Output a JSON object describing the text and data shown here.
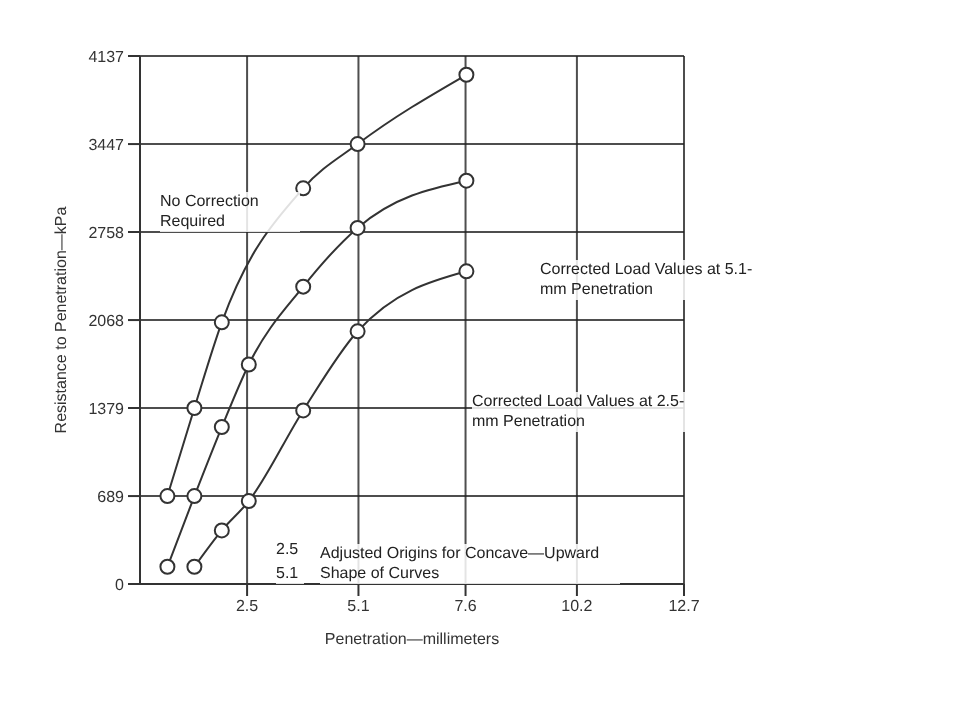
{
  "chart_data": {
    "type": "line",
    "xlabel": "Penetration—millimeters",
    "ylabel": "Resistance to Penetration—kPa",
    "series": [
      {
        "color": "#333333",
        "x": [
          0.64,
          1.27,
          1.91,
          3.81,
          5.08,
          7.62
        ],
        "values": [
          689,
          1379,
          2050,
          3100,
          3447,
          3990
        ]
      },
      {
        "color": "#333333",
        "x": [
          0.64,
          1.27,
          1.91,
          2.54,
          3.81,
          5.08,
          7.62
        ],
        "values": [
          135,
          689,
          1230,
          1720,
          2330,
          2790,
          3160
        ]
      },
      {
        "color": "#333333",
        "x": [
          1.27,
          1.91,
          2.54,
          3.81,
          5.08,
          7.62
        ],
        "values": [
          135,
          420,
          650,
          1360,
          1980,
          2450
        ]
      }
    ],
    "xlim": [
      0,
      12.7
    ],
    "xticks": [
      2.5,
      5.1,
      7.6,
      10.2,
      12.7
    ],
    "ylim": [
      0,
      4137
    ],
    "yticks": [
      0,
      689,
      1379,
      2068,
      2758,
      3447,
      4137
    ],
    "grid": true,
    "marker": "circle",
    "line_style": "solid",
    "annotations": [
      "No Correction Required",
      "Corrected Load Values at 5.1-mm Penetration",
      "Corrected Load Values at 2.5-mm Penetration",
      "Adjusted Origins for Concave—Upward Shape of Curves",
      "2.5",
      "5.1"
    ]
  }
}
